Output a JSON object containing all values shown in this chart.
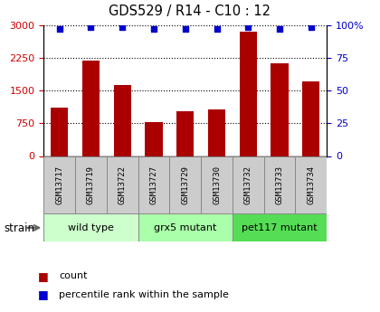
{
  "title": "GDS529 / R14 - C10 : 12",
  "samples": [
    "GSM13717",
    "GSM13719",
    "GSM13722",
    "GSM13727",
    "GSM13729",
    "GSM13730",
    "GSM13732",
    "GSM13733",
    "GSM13734"
  ],
  "counts": [
    1100,
    2175,
    1625,
    775,
    1025,
    1075,
    2850,
    2125,
    1700
  ],
  "percentiles": [
    97,
    98,
    98,
    97,
    97,
    97,
    98,
    97,
    98
  ],
  "groups": [
    {
      "label": "wild type",
      "start": 0,
      "end": 3,
      "color": "#ccffcc"
    },
    {
      "label": "grx5 mutant",
      "start": 3,
      "end": 6,
      "color": "#aaffaa"
    },
    {
      "label": "pet117 mutant",
      "start": 6,
      "end": 9,
      "color": "#55dd55"
    }
  ],
  "bar_color": "#aa0000",
  "dot_color": "#0000cc",
  "left_axis_color": "#cc0000",
  "right_axis_color": "#0000cc",
  "ylim_left": [
    0,
    3000
  ],
  "ylim_right": [
    0,
    100
  ],
  "yticks_left": [
    0,
    750,
    1500,
    2250,
    3000
  ],
  "yticks_right": [
    0,
    25,
    50,
    75,
    100
  ],
  "background_color": "#ffffff",
  "strain_label": "strain",
  "legend_count": "count",
  "legend_pct": "percentile rank within the sample",
  "sample_box_color": "#cccccc",
  "sample_box_edge": "#888888"
}
